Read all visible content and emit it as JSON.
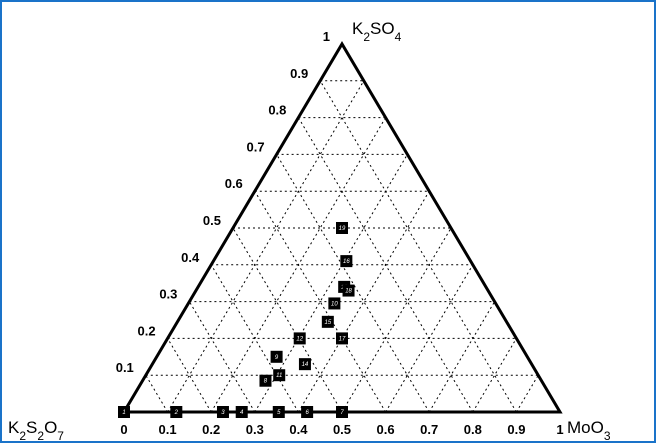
{
  "chart_data": {
    "type": "ternary",
    "vertices": {
      "left": "K2S2O7",
      "right": "MoO3",
      "top": "K2SO4"
    },
    "bottom_axis_ticks": [
      "0",
      "0.1",
      "0.2",
      "0.3",
      "0.4",
      "0.5",
      "0.6",
      "0.7",
      "0.8",
      "0.9",
      "1"
    ],
    "left_axis_ticks": [
      "0.1",
      "0.2",
      "0.3",
      "0.4",
      "0.5",
      "0.6",
      "0.7",
      "0.8",
      "0.9",
      "1"
    ],
    "grid": true,
    "grid_step": 0.1,
    "points": [
      {
        "label": "1",
        "MoO3": 0.0,
        "K2SO4": 0.0
      },
      {
        "label": "2",
        "MoO3": 0.12,
        "K2SO4": 0.0
      },
      {
        "label": "3",
        "MoO3": 0.227,
        "K2SO4": 0.0
      },
      {
        "label": "4",
        "MoO3": 0.27,
        "K2SO4": 0.0
      },
      {
        "label": "5",
        "MoO3": 0.355,
        "K2SO4": 0.0
      },
      {
        "label": "6",
        "MoO3": 0.42,
        "K2SO4": 0.0
      },
      {
        "label": "7",
        "MoO3": 0.5,
        "K2SO4": 0.0
      },
      {
        "label": "8",
        "MoO3": 0.282,
        "K2SO4": 0.085
      },
      {
        "label": "9",
        "MoO3": 0.275,
        "K2SO4": 0.15
      },
      {
        "label": "10",
        "MoO3": 0.335,
        "K2SO4": 0.295
      },
      {
        "label": "11",
        "MoO3": 0.306,
        "K2SO4": 0.1
      },
      {
        "label": "12",
        "MoO3": 0.303,
        "K2SO4": 0.2
      },
      {
        "label": "13",
        "MoO3": 0.335,
        "K2SO4": 0.34
      },
      {
        "label": "14",
        "MoO3": 0.35,
        "K2SO4": 0.13
      },
      {
        "label": "15",
        "MoO3": 0.345,
        "K2SO4": 0.245
      },
      {
        "label": "16",
        "MoO3": 0.305,
        "K2SO4": 0.41
      },
      {
        "label": "17",
        "MoO3": 0.4,
        "K2SO4": 0.2
      },
      {
        "label": "18",
        "MoO3": 0.35,
        "K2SO4": 0.33
      },
      {
        "label": "19",
        "MoO3": 0.25,
        "K2SO4": 0.5
      }
    ]
  }
}
